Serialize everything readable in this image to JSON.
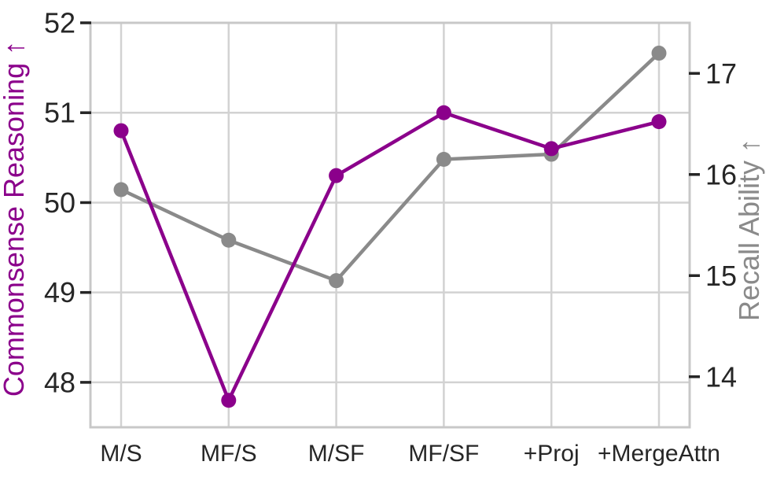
{
  "figure": {
    "background": "#ffffff",
    "text_color": "#262626",
    "grid_color": "#d2d2d2",
    "spine_color": "#c8c8c8",
    "tick_mark_color": "#262626"
  },
  "chart_data": {
    "type": "line",
    "title": "",
    "categories": [
      "M/S",
      "MF/S",
      "M/SF",
      "MF/SF",
      "+Proj",
      "+MergeAttn"
    ],
    "series": [
      {
        "name": "Commonsense Reasoning",
        "axis": "left",
        "color": "#8b008b",
        "values": [
          50.8,
          47.8,
          50.3,
          51.0,
          50.6,
          50.9
        ]
      },
      {
        "name": "Recall Ability",
        "axis": "right",
        "color": "#8a8a8a",
        "values": [
          15.85,
          15.35,
          14.95,
          16.15,
          16.2,
          17.2
        ]
      }
    ],
    "left_axis": {
      "label": "Commonsense Reasoning ↑",
      "color": "#8b008b",
      "ticks": [
        48,
        49,
        50,
        51,
        52
      ],
      "range": [
        47.5,
        52.0
      ]
    },
    "right_axis": {
      "label": "Recall Ability ↑",
      "color": "#8a8a8a",
      "ticks": [
        14,
        15,
        16,
        17
      ],
      "range": [
        13.5,
        17.5
      ]
    },
    "x_axis": {
      "label": ""
    },
    "grid": true,
    "legend_position": "none",
    "marker": "circle"
  }
}
